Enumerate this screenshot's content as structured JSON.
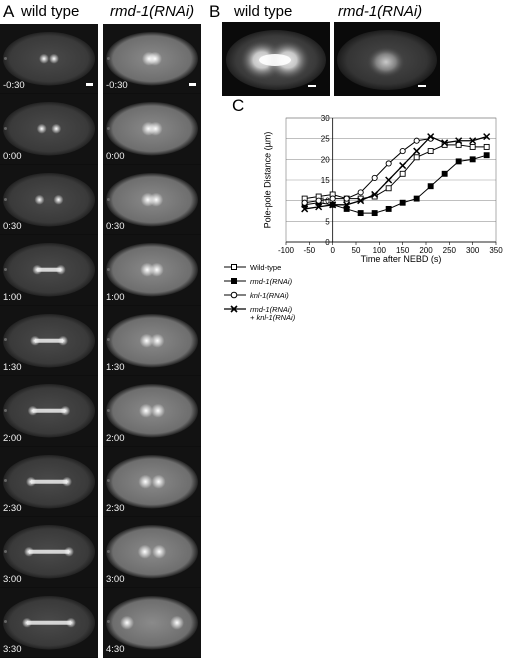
{
  "panel_a": {
    "letter": "A",
    "wild_type": {
      "header": "wild type",
      "timepoints": [
        "-0:30",
        "0:00",
        "0:30",
        "1:00",
        "1:30",
        "2:00",
        "2:30",
        "3:00",
        "3:30"
      ]
    },
    "rnai": {
      "header": "rmd-1(RNAi)",
      "timepoints": [
        "-0:30",
        "0:00",
        "0:30",
        "1:00",
        "1:30",
        "2:00",
        "2:30",
        "3:00",
        "4:30"
      ]
    }
  },
  "panel_b": {
    "letter": "B",
    "left_header": "wild type",
    "right_header": "rmd-1(RNAi)"
  },
  "panel_c": {
    "letter": "C"
  },
  "chart_data": {
    "type": "line",
    "xlabel": "Time after NEBD (s)",
    "ylabel": "Pole-pole Distance (µm)",
    "xlim": [
      -100,
      350
    ],
    "ylim": [
      0,
      30
    ],
    "xticks": [
      -100,
      -50,
      0,
      50,
      100,
      150,
      200,
      250,
      300,
      350
    ],
    "yticks": [
      0,
      5,
      10,
      15,
      20,
      25,
      30
    ],
    "grid": "horizontal",
    "series": [
      {
        "name": "Wild-type",
        "marker": "open-square",
        "x": [
          -60,
          -30,
          0,
          30,
          60,
          90,
          120,
          150,
          180,
          210,
          240,
          270,
          300,
          330
        ],
        "y": [
          10.5,
          11,
          11.5,
          10.5,
          10.5,
          11,
          13,
          16.5,
          20.5,
          22,
          23.5,
          23.5,
          23,
          23
        ]
      },
      {
        "name": "rmd-1(RNAi)",
        "marker": "filled-square",
        "x": [
          -60,
          -30,
          0,
          30,
          60,
          90,
          120,
          150,
          180,
          210,
          240,
          270,
          300,
          330
        ],
        "y": [
          9,
          9.5,
          9,
          8,
          7,
          7,
          8,
          9.5,
          10.5,
          13.5,
          16.5,
          19.5,
          20,
          21
        ]
      },
      {
        "name": "knl-1(RNAi)",
        "marker": "open-circle",
        "x": [
          -60,
          -30,
          0,
          30,
          60,
          90,
          120,
          150,
          180,
          210
        ],
        "y": [
          9.5,
          10,
          10.5,
          10.5,
          12,
          15.5,
          19,
          22,
          24.5,
          25
        ]
      },
      {
        "name": "rmd-1(RNAi) + knl-1(RNAi)",
        "marker": "x",
        "x": [
          -60,
          -30,
          0,
          30,
          60,
          90,
          120,
          150,
          180,
          210,
          240,
          270,
          300,
          330
        ],
        "y": [
          8,
          8.5,
          9,
          9,
          10,
          11.5,
          15,
          18.5,
          22,
          25.5,
          24,
          24.5,
          24.5,
          25.5
        ]
      }
    ],
    "legend": {
      "placement": "below",
      "entries": [
        "Wild-type",
        "rmd-1(RNAi)",
        "knl-1(RNAi)",
        "rmd-1(RNAi)",
        "+ knl-1(RNAi)"
      ]
    }
  }
}
